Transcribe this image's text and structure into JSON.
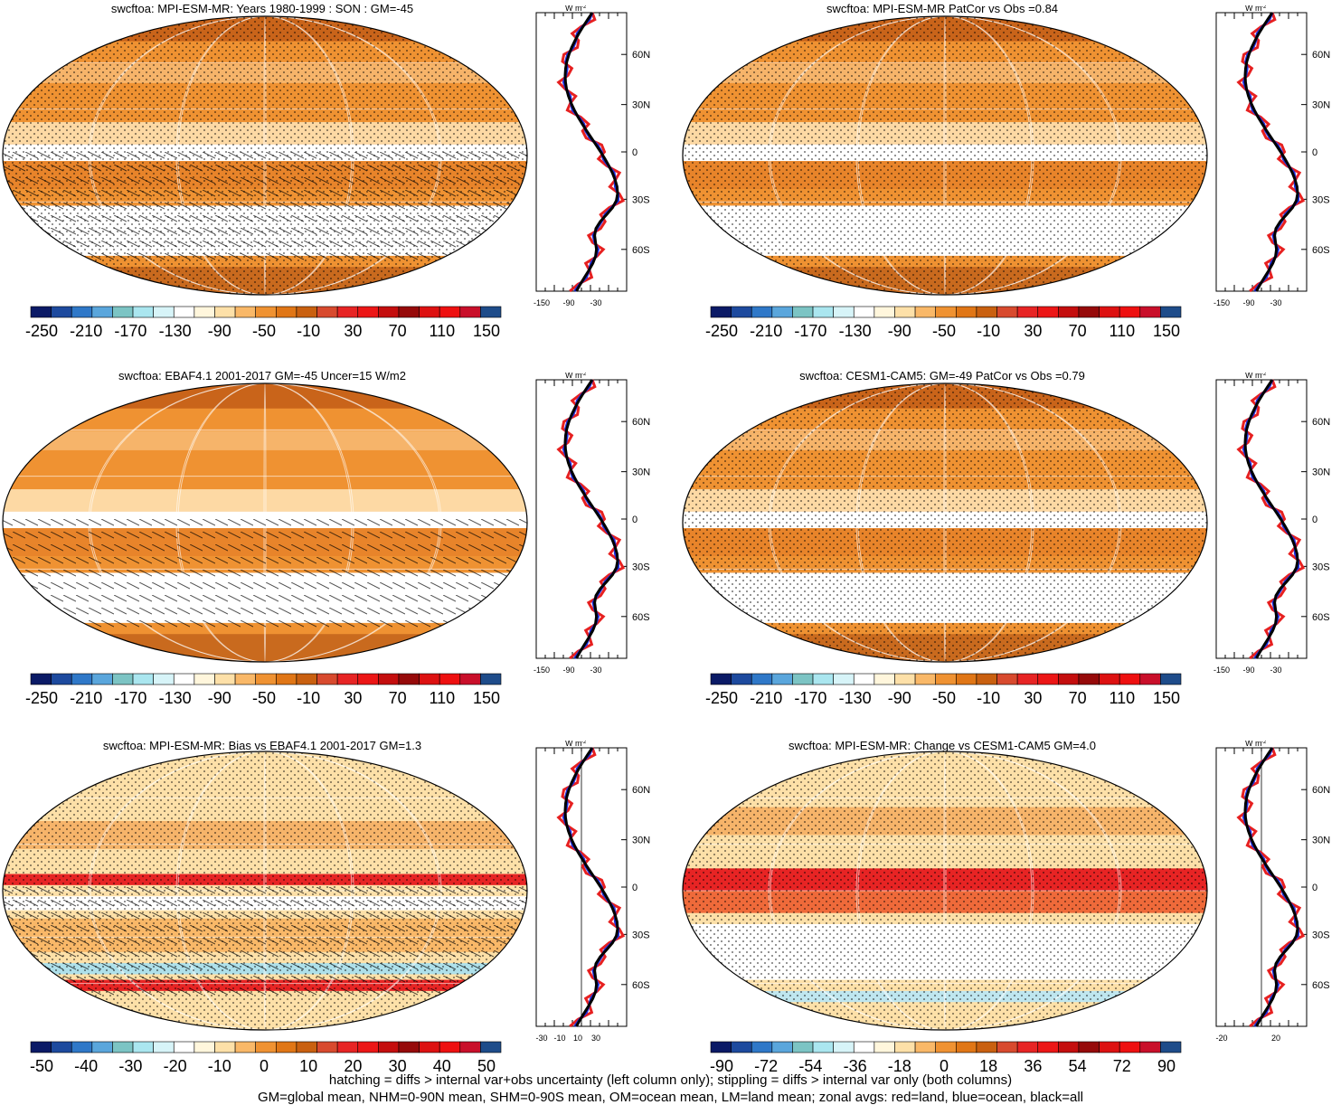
{
  "panels": [
    {
      "title": "swcftoa: MPI-ESM-MR: Years 1980-1999 : SON : GM=-45",
      "palette": "orange",
      "stipple": true,
      "hatch": true,
      "colorbar": {
        "colors": [
          "#0b1a66",
          "#1d4a9e",
          "#2f78c8",
          "#5aa6dc",
          "#7cc4c4",
          "#aae6ef",
          "#d7f4f8",
          "#ffffff",
          "#fff6dc",
          "#fde0a8",
          "#f9b868",
          "#ef9232",
          "#e07616",
          "#c96010",
          "#d84a2e",
          "#e72424",
          "#ec1616",
          "#c40e0e",
          "#960a0a",
          "#dd1111",
          "#ee1010",
          "#c90f2a",
          "#1e4c8a"
        ],
        "labels": [
          "-250",
          "-210",
          "-170",
          "-130",
          "-90",
          "-50",
          "-10",
          "30",
          "70",
          "110",
          "150"
        ]
      },
      "zonal": {
        "x_ticks": [
          "-150",
          "-90",
          "-30"
        ],
        "y_ticks": [
          "60N",
          "30N",
          "0",
          "30S",
          "60S"
        ],
        "unit": "W m",
        "unit_sup": "-2"
      }
    },
    {
      "title": "swcftoa: MPI-ESM-MR PatCor vs Obs =0.84",
      "palette": "orange",
      "stipple": true,
      "hatch": false,
      "colorbar": {
        "colors": [
          "#0b1a66",
          "#1d4a9e",
          "#2f78c8",
          "#5aa6dc",
          "#7cc4c4",
          "#aae6ef",
          "#d7f4f8",
          "#ffffff",
          "#fff6dc",
          "#fde0a8",
          "#f9b868",
          "#ef9232",
          "#e07616",
          "#c96010",
          "#d84a2e",
          "#e72424",
          "#ec1616",
          "#c40e0e",
          "#960a0a",
          "#dd1111",
          "#ee1010",
          "#c90f2a",
          "#1e4c8a"
        ],
        "labels": [
          "-250",
          "-210",
          "-170",
          "-130",
          "-90",
          "-50",
          "-10",
          "30",
          "70",
          "110",
          "150"
        ]
      },
      "zonal": {
        "x_ticks": [
          "-150",
          "-90",
          "-30"
        ],
        "y_ticks": [
          "60N",
          "30N",
          "0",
          "30S",
          "60S"
        ],
        "unit": "W m",
        "unit_sup": "-2"
      }
    },
    {
      "title": "swcftoa: EBAF4.1 2001-2017 GM=-45 Uncer=15 W/m2",
      "palette": "orange",
      "stipple": false,
      "hatch": true,
      "colorbar": {
        "colors": [
          "#0b1a66",
          "#1d4a9e",
          "#2f78c8",
          "#5aa6dc",
          "#7cc4c4",
          "#aae6ef",
          "#d7f4f8",
          "#ffffff",
          "#fff6dc",
          "#fde0a8",
          "#f9b868",
          "#ef9232",
          "#e07616",
          "#c96010",
          "#d84a2e",
          "#e72424",
          "#ec1616",
          "#c40e0e",
          "#960a0a",
          "#dd1111",
          "#ee1010",
          "#c90f2a",
          "#1e4c8a"
        ],
        "labels": [
          "-250",
          "-210",
          "-170",
          "-130",
          "-90",
          "-50",
          "-10",
          "30",
          "70",
          "110",
          "150"
        ]
      },
      "zonal": {
        "x_ticks": [
          "-150",
          "-90",
          "-30"
        ],
        "y_ticks": [
          "60N",
          "30N",
          "0",
          "30S",
          "60S"
        ],
        "unit": "W m",
        "unit_sup": "-2"
      }
    },
    {
      "title": "swcftoa: CESM1-CAM5: GM=-49 PatCor vs Obs =0.79",
      "palette": "orange",
      "stipple": true,
      "hatch": false,
      "colorbar": {
        "colors": [
          "#0b1a66",
          "#1d4a9e",
          "#2f78c8",
          "#5aa6dc",
          "#7cc4c4",
          "#aae6ef",
          "#d7f4f8",
          "#ffffff",
          "#fff6dc",
          "#fde0a8",
          "#f9b868",
          "#ef9232",
          "#e07616",
          "#c96010",
          "#d84a2e",
          "#e72424",
          "#ec1616",
          "#c40e0e",
          "#960a0a",
          "#dd1111",
          "#ee1010",
          "#c90f2a",
          "#1e4c8a"
        ],
        "labels": [
          "-250",
          "-210",
          "-170",
          "-130",
          "-90",
          "-50",
          "-10",
          "30",
          "70",
          "110",
          "150"
        ]
      },
      "zonal": {
        "x_ticks": [
          "-150",
          "-90",
          "-30"
        ],
        "y_ticks": [
          "60N",
          "30N",
          "0",
          "30S",
          "60S"
        ],
        "unit": "W m",
        "unit_sup": "-2"
      }
    },
    {
      "title": "swcftoa: MPI-ESM-MR: Bias vs EBAF4.1 2001-2017  GM=1.3",
      "palette": "bias",
      "stipple": true,
      "hatch": true,
      "colorbar": {
        "colors": [
          "#0b1a66",
          "#1d4a9e",
          "#2f78c8",
          "#5aa6dc",
          "#7cc4c4",
          "#aae6ef",
          "#d7f4f8",
          "#ffffff",
          "#fff6dc",
          "#fde0a8",
          "#f9b868",
          "#ef9232",
          "#e07616",
          "#c96010",
          "#d84a2e",
          "#e72424",
          "#ec1616",
          "#c40e0e",
          "#960a0a",
          "#dd1111",
          "#ee1010",
          "#c90f2a",
          "#1e4c8a"
        ],
        "labels": [
          "-50",
          "-40",
          "-30",
          "-20",
          "-10",
          "0",
          "10",
          "20",
          "30",
          "40",
          "50"
        ]
      },
      "zonal": {
        "x_ticks": [
          "-30",
          "-10",
          "10",
          "30"
        ],
        "y_ticks": [
          "60N",
          "30N",
          "0",
          "30S",
          "60S"
        ],
        "unit": "W m",
        "unit_sup": "-2"
      }
    },
    {
      "title": "swcftoa: MPI-ESM-MR: Change vs CESM1-CAM5 GM=4.0",
      "palette": "change",
      "stipple": true,
      "hatch": false,
      "colorbar": {
        "colors": [
          "#0b1a66",
          "#1d4a9e",
          "#2f78c8",
          "#5aa6dc",
          "#7cc4c4",
          "#aae6ef",
          "#d7f4f8",
          "#ffffff",
          "#fff6dc",
          "#fde0a8",
          "#f9b868",
          "#ef9232",
          "#e07616",
          "#c96010",
          "#d84a2e",
          "#e72424",
          "#ec1616",
          "#c40e0e",
          "#960a0a",
          "#dd1111",
          "#ee1010",
          "#c90f2a",
          "#1e4c8a"
        ],
        "labels": [
          "-90",
          "-72",
          "-54",
          "-36",
          "-18",
          "0",
          "18",
          "36",
          "54",
          "72",
          "90"
        ]
      },
      "zonal": {
        "x_ticks": [
          "-20",
          "20"
        ],
        "y_ticks": [
          "60N",
          "30N",
          "0",
          "30S",
          "60S"
        ],
        "unit": "W m",
        "unit_sup": "-2"
      }
    }
  ],
  "footer": {
    "line1": "hatching = diffs > internal var+obs uncertainty (left column only); stippling = diffs > internal var only (both columns)",
    "line2": "GM=global mean, NHM=0-90N mean, SHM=0-90S mean, OM=ocean mean, LM=land mean; zonal avgs: red=land, blue=ocean, black=all"
  }
}
